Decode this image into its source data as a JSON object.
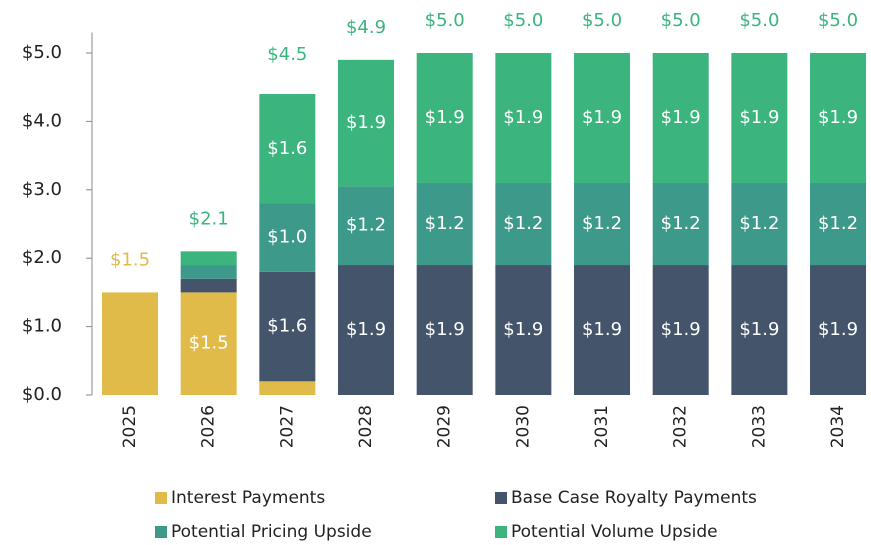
{
  "chart_data": {
    "type": "stacked_bar",
    "categories": [
      "2025",
      "2026",
      "2027",
      "2028",
      "2029",
      "2030",
      "2031",
      "2032",
      "2033",
      "2034"
    ],
    "series": [
      {
        "name": "Interest Payments",
        "color": "#e0bb4a",
        "values": [
          1.5,
          1.5,
          0.2,
          0,
          0,
          0,
          0,
          0,
          0,
          0
        ],
        "value_labels": [
          null,
          "$1.5",
          null,
          null,
          null,
          null,
          null,
          null,
          null,
          null
        ]
      },
      {
        "name": "Base Case Royalty Payments",
        "color": "#44546a",
        "values": [
          0,
          0.2,
          1.6,
          1.9,
          1.9,
          1.9,
          1.9,
          1.9,
          1.9,
          1.9
        ],
        "value_labels": [
          null,
          null,
          "$1.6",
          "$1.9",
          "$1.9",
          "$1.9",
          "$1.9",
          "$1.9",
          "$1.9",
          "$1.9"
        ]
      },
      {
        "name": "Potential Pricing Upside",
        "color": "#3d9a8b",
        "values": [
          0,
          0.2,
          1.0,
          1.15,
          1.2,
          1.2,
          1.2,
          1.2,
          1.2,
          1.2
        ],
        "value_labels": [
          null,
          null,
          "$1.0",
          "$1.2",
          "$1.2",
          "$1.2",
          "$1.2",
          "$1.2",
          "$1.2",
          "$1.2"
        ]
      },
      {
        "name": "Potential Volume Upside",
        "color": "#3bb47e",
        "values": [
          0,
          0.2,
          1.6,
          1.85,
          1.9,
          1.9,
          1.9,
          1.9,
          1.9,
          1.9
        ],
        "value_labels": [
          null,
          null,
          "$1.6",
          "$1.9",
          "$1.9",
          "$1.9",
          "$1.9",
          "$1.9",
          "$1.9",
          "$1.9"
        ]
      }
    ],
    "totals": [
      1.5,
      2.1,
      4.5,
      4.9,
      5.0,
      5.0,
      5.0,
      5.0,
      5.0,
      5.0
    ],
    "total_labels": [
      "$1.5",
      "$2.1",
      "$4.5",
      "$4.9",
      "$5.0",
      "$5.0",
      "$5.0",
      "$5.0",
      "$5.0",
      "$5.0"
    ],
    "ylim": [
      0,
      5.3
    ],
    "yticks": [
      {
        "value": 0,
        "label": "$0.0"
      },
      {
        "value": 1,
        "label": "$1.0"
      },
      {
        "value": 2,
        "label": "$2.0"
      },
      {
        "value": 3,
        "label": "$3.0"
      },
      {
        "value": 4,
        "label": "$4.0"
      },
      {
        "value": 5,
        "label": "$5.0"
      }
    ]
  }
}
